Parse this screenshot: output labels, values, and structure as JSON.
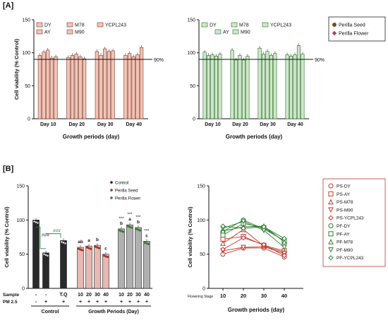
{
  "panels": {
    "A": "[A]",
    "B": "[B]"
  },
  "chart_data": [
    {
      "id": "A-left",
      "type": "bar",
      "ylabel": "Cell viability (% Control)",
      "xlabel": "Growth periods (day)",
      "ylim": [
        0,
        150
      ],
      "yticks": [
        0,
        50,
        100,
        150
      ],
      "categories": [
        "Day 10",
        "Day 20",
        "Day 30",
        "Day 40"
      ],
      "series": [
        {
          "name": "DY",
          "values": [
            96,
            93,
            102,
            96
          ]
        },
        {
          "name": "AY",
          "values": [
            101,
            96,
            96,
            99
          ]
        },
        {
          "name": "M78",
          "values": [
            104,
            98,
            106,
            94
          ]
        },
        {
          "name": "M90",
          "values": [
            92,
            94,
            102,
            97
          ]
        },
        {
          "name": "YCPL243",
          "values": [
            94,
            91,
            103,
            108
          ]
        }
      ],
      "reference_line": {
        "value": 90,
        "label": "90%"
      },
      "color": "#f3c3b5",
      "edge": "#7a3b2e"
    },
    {
      "id": "A-right",
      "type": "bar",
      "ylabel": "",
      "xlabel": "Growth periods (day)",
      "ylim": [
        0,
        150
      ],
      "yticks": [
        0,
        50,
        100,
        150
      ],
      "categories": [
        "Day 10",
        "Day 20",
        "Day 30",
        "Day 40"
      ],
      "series": [
        {
          "name": "DY",
          "values": [
            101,
            104,
            107,
            97
          ]
        },
        {
          "name": "AY",
          "values": [
            96,
            89,
            98,
            95
          ]
        },
        {
          "name": "M78",
          "values": [
            97,
            96,
            102,
            97
          ]
        },
        {
          "name": "M90",
          "values": [
            95,
            89,
            96,
            111
          ]
        },
        {
          "name": "YCPL243",
          "values": [
            98,
            95,
            99,
            98
          ]
        }
      ],
      "reference_line": {
        "value": 90,
        "label": "90%"
      },
      "color": "#cde8c9",
      "edge": "#2f6b2a"
    },
    {
      "id": "A-legend",
      "type": "legend",
      "entries": [
        {
          "name": "Perilla Seed",
          "color": "#7a4a1a"
        },
        {
          "name": "Perilla Flower",
          "color": "#b04060"
        }
      ]
    },
    {
      "id": "B-left",
      "type": "bar",
      "ylabel": "Cell viability (% Control)",
      "xlabel": "Growth Periods (Day)",
      "xlabel_control": "Control",
      "ylim": [
        0,
        150
      ],
      "yticks": [
        0,
        50,
        100,
        150
      ],
      "bars": [
        {
          "sample": "-",
          "pm": "-",
          "value": 100,
          "group": "control",
          "letter": "",
          "stars": ""
        },
        {
          "sample": "-",
          "pm": "+",
          "value": 52,
          "group": "control",
          "letter": "",
          "stars": ""
        },
        {
          "sample": "T.Q",
          "pm": "+",
          "value": 70,
          "group": "control",
          "letter": "",
          "stars": ""
        },
        {
          "sample": "10",
          "pm": "+",
          "value": 60,
          "group": "seed",
          "letter": "ab",
          "stars": ""
        },
        {
          "sample": "20",
          "pm": "+",
          "value": 62,
          "group": "seed",
          "letter": "a",
          "stars": ""
        },
        {
          "sample": "30",
          "pm": "+",
          "value": 63,
          "group": "seed",
          "letter": "b",
          "stars": ""
        },
        {
          "sample": "40",
          "pm": "+",
          "value": 50,
          "group": "seed",
          "letter": "c",
          "stars": ""
        },
        {
          "sample": "10",
          "pm": "+",
          "value": 87,
          "group": "flower",
          "letter": "b",
          "stars": "***"
        },
        {
          "sample": "20",
          "pm": "+",
          "value": 93,
          "group": "flower",
          "letter": "a",
          "stars": "***"
        },
        {
          "sample": "30",
          "pm": "+",
          "value": 89,
          "group": "flower",
          "letter": "b",
          "stars": "***"
        },
        {
          "sample": "40",
          "pm": "+",
          "value": 69,
          "group": "flower",
          "letter": "c",
          "stars": "***"
        }
      ],
      "row_labels": [
        "Sample",
        "PM 2.5"
      ],
      "significance": [
        "###",
        "###"
      ],
      "legend": [
        {
          "name": "Control",
          "color": "#222222"
        },
        {
          "name": "Perilla Seed",
          "color": "#a0332a"
        },
        {
          "name": "Perilla Flower",
          "color": "#3a7a35"
        }
      ]
    },
    {
      "id": "B-right",
      "type": "line",
      "ylabel": "Cell viability (% Control)",
      "xlabel": "Growth periods (day)",
      "x_prefix_label": "Flowering Stage",
      "x": [
        10,
        20,
        30,
        40
      ],
      "ylim": [
        0,
        150
      ],
      "yticks": [
        0,
        50,
        100,
        150
      ],
      "series": [
        {
          "name": "PS-DY",
          "values": [
            50,
            59,
            59,
            46
          ],
          "color": "#c0392b",
          "marker": "circle"
        },
        {
          "name": "PS-AY",
          "values": [
            72,
            76,
            63,
            55
          ],
          "color": "#c0392b",
          "marker": "square"
        },
        {
          "name": "PS-M78",
          "values": [
            66,
            86,
            62,
            53
          ],
          "color": "#c0392b",
          "marker": "triangle"
        },
        {
          "name": "PS-M90",
          "values": [
            55,
            60,
            61,
            51
          ],
          "color": "#c0392b",
          "marker": "tridown"
        },
        {
          "name": "PS-YCPL243",
          "values": [
            57,
            74,
            64,
            48
          ],
          "color": "#c0392b",
          "marker": "diamond"
        },
        {
          "name": "PF-DY",
          "values": [
            83,
            100,
            87,
            70
          ],
          "color": "#2e7d32",
          "marker": "circle"
        },
        {
          "name": "PF-AY",
          "values": [
            78,
            95,
            89,
            69
          ],
          "color": "#2e7d32",
          "marker": "square"
        },
        {
          "name": "PF-M78",
          "values": [
            84,
            90,
            91,
            68
          ],
          "color": "#2e7d32",
          "marker": "triangle"
        },
        {
          "name": "PF-M90",
          "values": [
            88,
            98,
            85,
            60
          ],
          "color": "#2e7d32",
          "marker": "tridown"
        },
        {
          "name": "PF-YCPL243",
          "values": [
            91,
            88,
            90,
            73
          ],
          "color": "#2e7d32",
          "marker": "diamond"
        }
      ]
    }
  ]
}
